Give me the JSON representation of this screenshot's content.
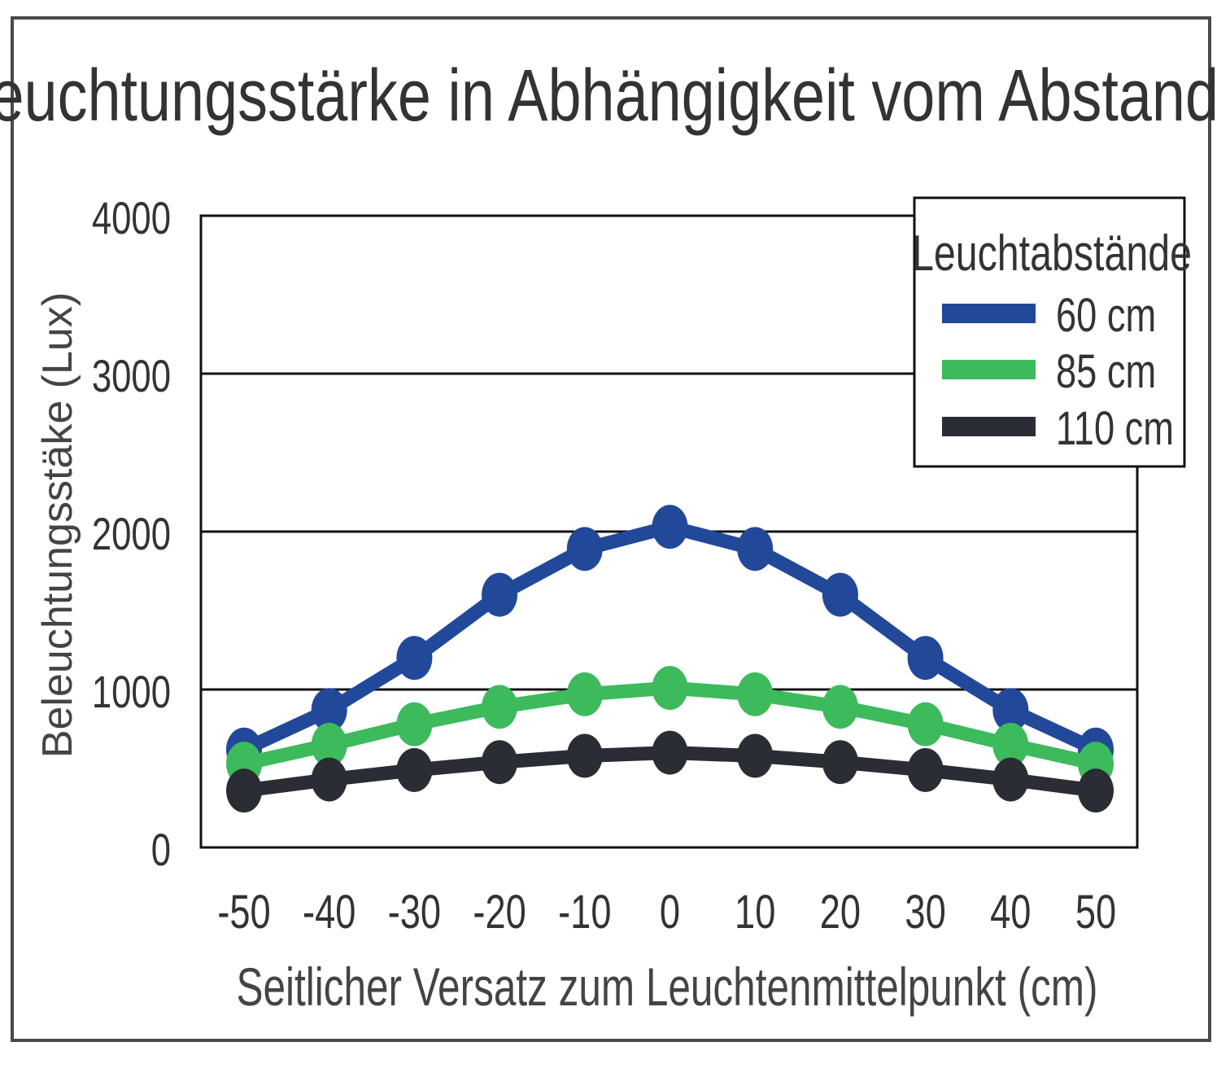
{
  "chart_data": {
    "type": "line",
    "title": "Beleuchtungsstärke in Abhängigkeit vom Abstand",
    "xlabel": "Seitlicher Versatz zum Leuchtenmittelpunkt (cm)",
    "ylabel": "Beleuchtungsstäke (Lux)",
    "x": [
      -50,
      -40,
      -30,
      -20,
      -10,
      0,
      10,
      20,
      30,
      40,
      50
    ],
    "xticks": [
      "-50",
      "-40",
      "-30",
      "-20",
      "-10",
      "0",
      "10",
      "20",
      "30",
      "40",
      "50"
    ],
    "yticks": [
      "0",
      "1000",
      "2000",
      "3000",
      "4000"
    ],
    "ylim": [
      0,
      4000
    ],
    "grid": "horizontal",
    "legend": {
      "title": "Leuchtabstände",
      "placement": "top-right"
    },
    "series": [
      {
        "name": "60 cm",
        "color": "#22489a",
        "values": [
          620,
          870,
          1200,
          1600,
          1890,
          2030,
          1890,
          1600,
          1200,
          870,
          620
        ]
      },
      {
        "name": "85 cm",
        "color": "#3dba5c",
        "values": [
          530,
          650,
          780,
          890,
          970,
          1010,
          970,
          890,
          780,
          650,
          530
        ]
      },
      {
        "name": "110 cm",
        "color": "#2a2d33",
        "values": [
          360,
          430,
          490,
          540,
          580,
          600,
          580,
          540,
          490,
          430,
          360
        ]
      }
    ]
  }
}
